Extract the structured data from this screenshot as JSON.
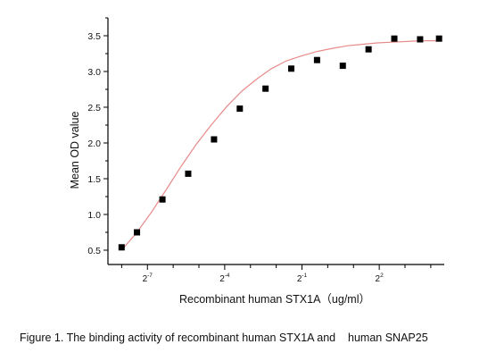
{
  "chart_data": {
    "type": "scatter",
    "xlabel": "Recombinant human  STX1A（ug/ml）",
    "ylabel": "Mean OD value",
    "x_scale": "log2",
    "xlim": [
      0.0027,
      23
    ],
    "ylim": [
      0.3,
      3.75
    ],
    "x_ticks": [
      {
        "base": "2",
        "exp": "-7",
        "value": 0.0078125
      },
      {
        "base": "2",
        "exp": "-4",
        "value": 0.0625
      },
      {
        "base": "2",
        "exp": "-1",
        "value": 0.5
      },
      {
        "base": "2",
        "exp": "2",
        "value": 4
      }
    ],
    "y_ticks": [
      "0.5",
      "1.0",
      "1.5",
      "2.0",
      "2.5",
      "3.0",
      "3.5"
    ],
    "grid": false,
    "series": [
      {
        "style": "points",
        "marker": "square",
        "color": "#000000",
        "x": [
          0.0039,
          0.0059,
          0.0117,
          0.0234,
          0.0469,
          0.0938,
          0.1875,
          0.375,
          0.75,
          1.5,
          3.0,
          6.0,
          12.0,
          20.0
        ],
        "y": [
          0.54,
          0.75,
          1.21,
          1.57,
          2.05,
          2.48,
          2.76,
          3.04,
          3.16,
          3.08,
          3.31,
          3.46,
          3.45,
          3.46
        ]
      },
      {
        "style": "line",
        "color": "#e88a8a",
        "x": [
          0.0039,
          0.0058,
          0.0087,
          0.013,
          0.0195,
          0.029,
          0.044,
          0.066,
          0.1,
          0.15,
          0.22,
          0.33,
          0.5,
          0.75,
          1.1,
          1.7,
          2.5,
          3.8,
          5.6,
          8.5,
          12.0,
          20.0
        ],
        "y": [
          0.5,
          0.74,
          1.03,
          1.35,
          1.68,
          1.98,
          2.26,
          2.51,
          2.73,
          2.9,
          3.04,
          3.15,
          3.22,
          3.28,
          3.32,
          3.36,
          3.38,
          3.4,
          3.41,
          3.42,
          3.43,
          3.43
        ]
      }
    ]
  },
  "caption": "Figure 1. The binding activity of recombinant human STX1A and    human SNAP25"
}
